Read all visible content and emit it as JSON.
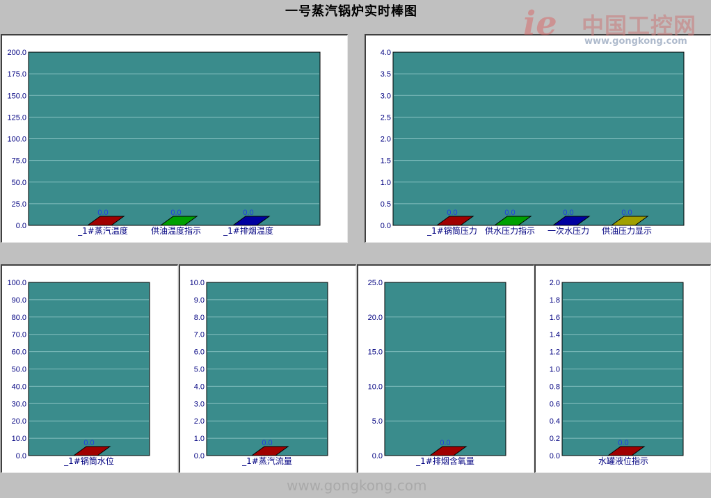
{
  "title": "一号蒸汽锅炉实时棒图",
  "watermark": {
    "logo": "ie",
    "cn": "中国工控网",
    "url": "www.gongkong.com",
    "bottom_url": "www.gongkong.com"
  },
  "colors": {
    "background": "#c0c0c0",
    "plot": "#3a8c8c",
    "grid": "#86c0c0",
    "axis_text": "#000080",
    "value_text": "#2040e0"
  },
  "chart_data": [
    {
      "type": "bar",
      "ylim": [
        0,
        200
      ],
      "yticks": [
        "0.0",
        "25.0",
        "50.0",
        "75.0",
        "100.0",
        "125.0",
        "150.0",
        "175.0",
        "200.0"
      ],
      "categories": [
        "_1#蒸汽温度",
        "供油温度指示",
        "_1#排烟温度"
      ],
      "values": [
        0,
        0,
        0
      ],
      "value_labels": [
        "0.0",
        "0.0",
        "0.0"
      ],
      "bar_colors": [
        "#a00000",
        "#00a000",
        "#0000a0"
      ],
      "grid": true
    },
    {
      "type": "bar",
      "ylim": [
        0,
        4
      ],
      "yticks": [
        "0.0",
        "0.5",
        "1.0",
        "1.5",
        "2.0",
        "2.5",
        "3.0",
        "3.5",
        "4.0"
      ],
      "categories": [
        "_1#锅筒压力",
        "供水压力指示",
        "一次水压力",
        "供油压力显示"
      ],
      "values": [
        0,
        0,
        0,
        0
      ],
      "value_labels": [
        "0.0",
        "0.0",
        "0.0",
        "0.0"
      ],
      "bar_colors": [
        "#a00000",
        "#00a000",
        "#0000a0",
        "#a0a000"
      ],
      "grid": true
    },
    {
      "type": "bar",
      "ylim": [
        0,
        100
      ],
      "yticks": [
        "0.0",
        "10.0",
        "20.0",
        "30.0",
        "40.0",
        "50.0",
        "60.0",
        "70.0",
        "80.0",
        "90.0",
        "100.0"
      ],
      "categories": [
        "_1#锅筒水位"
      ],
      "values": [
        0
      ],
      "value_labels": [
        "0.0"
      ],
      "bar_colors": [
        "#a00000"
      ],
      "grid": true
    },
    {
      "type": "bar",
      "ylim": [
        0,
        10
      ],
      "yticks": [
        "0.0",
        "1.0",
        "2.0",
        "3.0",
        "4.0",
        "5.0",
        "6.0",
        "7.0",
        "8.0",
        "9.0",
        "10.0"
      ],
      "categories": [
        "_1#蒸汽流量"
      ],
      "values": [
        0
      ],
      "value_labels": [
        "0.0"
      ],
      "bar_colors": [
        "#a00000"
      ],
      "grid": true
    },
    {
      "type": "bar",
      "ylim": [
        0,
        25
      ],
      "yticks": [
        "0.0",
        "5.0",
        "10.0",
        "15.0",
        "20.0",
        "25.0"
      ],
      "categories": [
        "_1#排烟含氧量"
      ],
      "values": [
        0
      ],
      "value_labels": [
        "0.0"
      ],
      "bar_colors": [
        "#a00000"
      ],
      "grid": true
    },
    {
      "type": "bar",
      "ylim": [
        0,
        2
      ],
      "yticks": [
        "0.0",
        "0.2",
        "0.4",
        "0.6",
        "0.8",
        "1.0",
        "1.2",
        "1.4",
        "1.6",
        "1.8",
        "2.0"
      ],
      "categories": [
        "水罐液位指示"
      ],
      "values": [
        0
      ],
      "value_labels": [
        "0.0"
      ],
      "bar_colors": [
        "#a00000"
      ],
      "grid": true
    }
  ]
}
